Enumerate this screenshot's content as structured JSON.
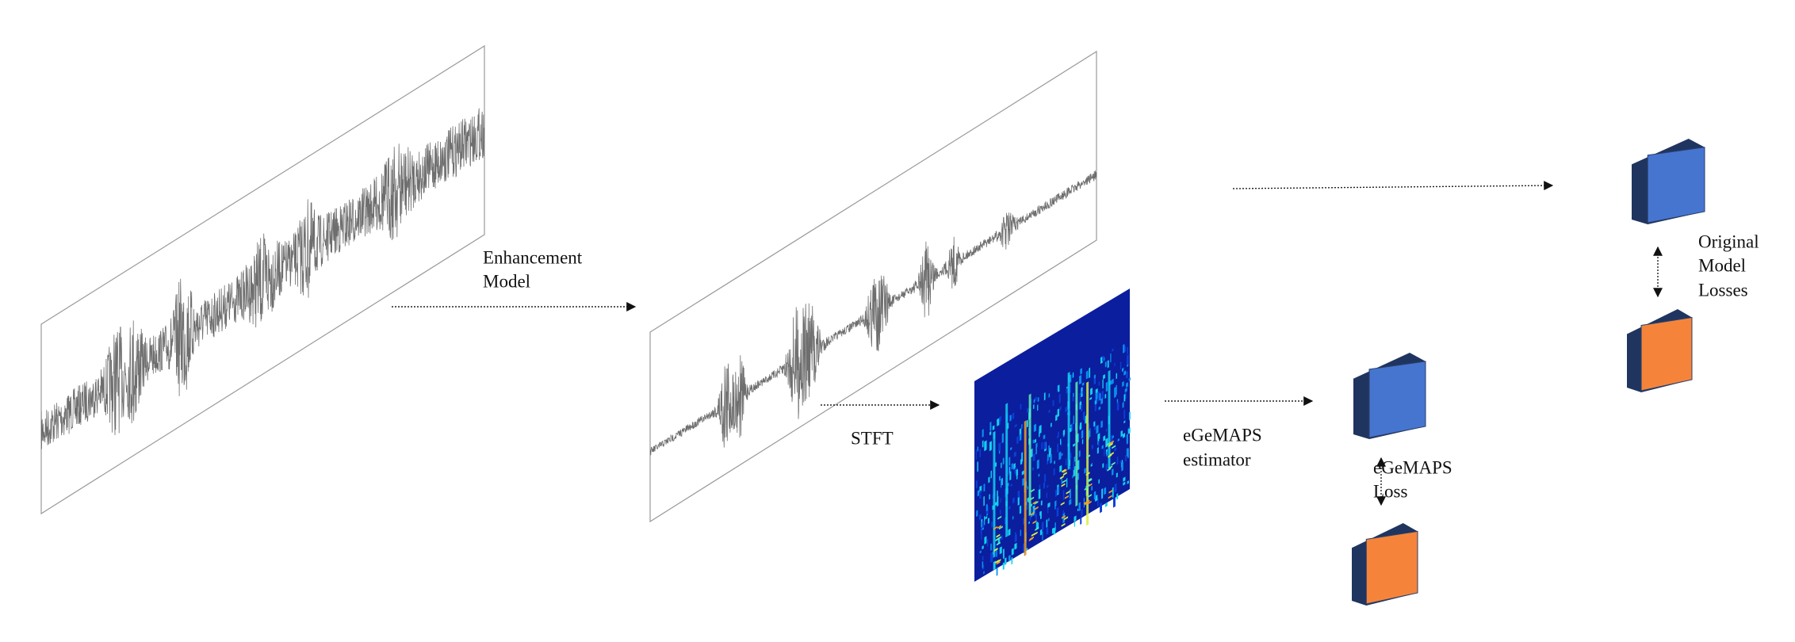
{
  "labels": {
    "enhancement_model": [
      "Enhancement",
      "Model"
    ],
    "stft": "STFT",
    "egemaps_estimator": [
      "eGeMAPS",
      "estimator"
    ],
    "egemaps_loss": [
      "eGeMAPS",
      "Loss"
    ],
    "original_model_losses": [
      "Original",
      "Model",
      "Losses"
    ]
  }
}
